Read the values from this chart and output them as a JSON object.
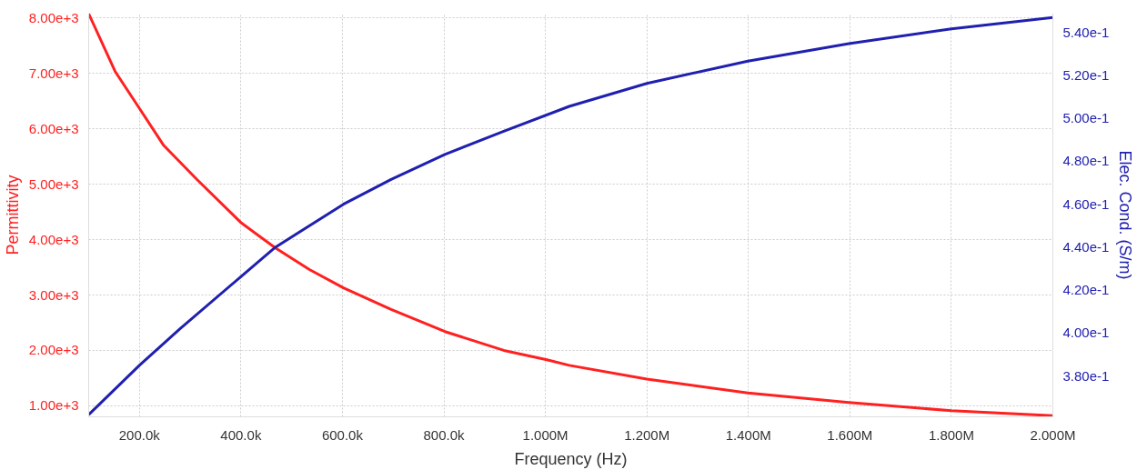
{
  "chart_data": {
    "type": "line",
    "xlabel": "Frequency (Hz)",
    "ylabel": "Permittivity",
    "y2label": "Elec. Cond. (S/m)",
    "xlim": [
      100000,
      2000000
    ],
    "xticks": [
      {
        "value": 200000,
        "label": "200.0k"
      },
      {
        "value": 400000,
        "label": "400.0k"
      },
      {
        "value": 600000,
        "label": "600.0k"
      },
      {
        "value": 800000,
        "label": "800.0k"
      },
      {
        "value": 1000000,
        "label": "1.000M"
      },
      {
        "value": 1200000,
        "label": "1.200M"
      },
      {
        "value": 1400000,
        "label": "1.400M"
      },
      {
        "value": 1600000,
        "label": "1.600M"
      },
      {
        "value": 1800000,
        "label": "1.800M"
      },
      {
        "value": 2000000,
        "label": "2.000M"
      }
    ],
    "ylim": [
      800,
      8090
    ],
    "yticks": [
      {
        "value": 1000,
        "label": "1.00e+3"
      },
      {
        "value": 2000,
        "label": "2.00e+3"
      },
      {
        "value": 3000,
        "label": "3.00e+3"
      },
      {
        "value": 4000,
        "label": "4.00e+3"
      },
      {
        "value": 5000,
        "label": "5.00e+3"
      },
      {
        "value": 6000,
        "label": "6.00e+3"
      },
      {
        "value": 7000,
        "label": "7.00e+3"
      },
      {
        "value": 8000,
        "label": "8.00e+3"
      }
    ],
    "y2lim": [
      0.361,
      0.549
    ],
    "y2ticks": [
      {
        "value": 0.38,
        "label": "3.80e-1"
      },
      {
        "value": 0.4,
        "label": "4.00e-1"
      },
      {
        "value": 0.42,
        "label": "4.20e-1"
      },
      {
        "value": 0.44,
        "label": "4.40e-1"
      },
      {
        "value": 0.46,
        "label": "4.60e-1"
      },
      {
        "value": 0.48,
        "label": "4.80e-1"
      },
      {
        "value": 0.5,
        "label": "5.00e-1"
      },
      {
        "value": 0.52,
        "label": "5.20e-1"
      },
      {
        "value": 0.54,
        "label": "5.40e-1"
      }
    ],
    "grid": true,
    "line_style": "solid",
    "series": [
      {
        "color": "#ff2020",
        "x": [
          100000,
          152000,
          200000,
          248000,
          313000,
          401000,
          468000,
          535000,
          602000,
          696000,
          802000,
          918000,
          1003000,
          1047000,
          1200000,
          1399000,
          1598000,
          1800000,
          2000000
        ],
        "values": [
          8080,
          7040,
          6370,
          5700,
          5090,
          4300,
          3850,
          3460,
          3130,
          2740,
          2340,
          2000,
          1830,
          1730,
          1480,
          1230,
          1060,
          910,
          820
        ]
      },
      {
        "color": "#2020b0",
        "axis": "y2",
        "x": [
          100000,
          200000,
          280000,
          401000,
          468000,
          602000,
          696000,
          802000,
          918000,
          1047000,
          1200000,
          1399000,
          1598000,
          1800000,
          2000000
        ],
        "values": [
          0.362,
          0.385,
          0.402,
          0.4265,
          0.44,
          0.46,
          0.4716,
          0.4832,
          0.494,
          0.5056,
          0.5163,
          0.5267,
          0.5348,
          0.5417,
          0.547
        ]
      }
    ]
  }
}
